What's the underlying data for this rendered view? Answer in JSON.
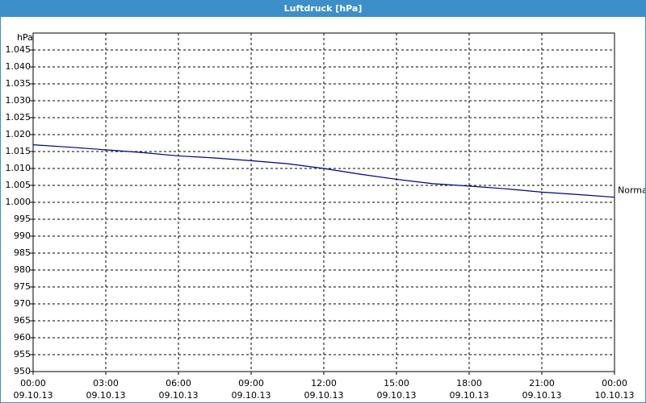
{
  "chart_data": {
    "type": "line",
    "title": "Luftdruck [hPa]",
    "y_unit": "hPa",
    "x": [
      0,
      1.5,
      3,
      4.5,
      6,
      7.5,
      9,
      10.5,
      12,
      13.5,
      15,
      16.5,
      18,
      19.5,
      21,
      22.5,
      24
    ],
    "series": [
      {
        "name": "Normal",
        "color": "#000080",
        "values": [
          1017,
          1016.3,
          1015.5,
          1014.7,
          1013.7,
          1013.1,
          1012.3,
          1011.4,
          1010,
          1008.3,
          1006.8,
          1005.5,
          1004.8,
          1004,
          1003,
          1002.3,
          1001.5
        ]
      }
    ],
    "xlim": [
      0,
      24
    ],
    "xticks": [
      {
        "value": 0,
        "label": "00:00\n09.10.13"
      },
      {
        "value": 3,
        "label": "03:00\n09.10.13"
      },
      {
        "value": 6,
        "label": "06:00\n09.10.13"
      },
      {
        "value": 9,
        "label": "09:00\n09.10.13"
      },
      {
        "value": 12,
        "label": "12:00\n09.10.13"
      },
      {
        "value": 15,
        "label": "15:00\n09.10.13"
      },
      {
        "value": 18,
        "label": "18:00\n09.10.13"
      },
      {
        "value": 21,
        "label": "21:00\n09.10.13"
      },
      {
        "value": 24,
        "label": "00:00\n10.10.13"
      }
    ],
    "ylim": [
      950,
      1050
    ],
    "yticks": [
      950,
      955,
      960,
      965,
      970,
      975,
      980,
      985,
      990,
      995,
      {
        "value": 1000,
        "label": "1.000"
      },
      {
        "value": 1005,
        "label": "1.005"
      },
      {
        "value": 1010,
        "label": "1.010"
      },
      {
        "value": 1015,
        "label": "1.015"
      },
      {
        "value": 1020,
        "label": "1.020"
      },
      {
        "value": 1025,
        "label": "1.025"
      },
      {
        "value": 1030,
        "label": "1.030"
      },
      {
        "value": 1035,
        "label": "1.035"
      },
      {
        "value": 1040,
        "label": "1.040"
      },
      {
        "value": 1045,
        "label": "1.045"
      }
    ],
    "grid": true
  }
}
